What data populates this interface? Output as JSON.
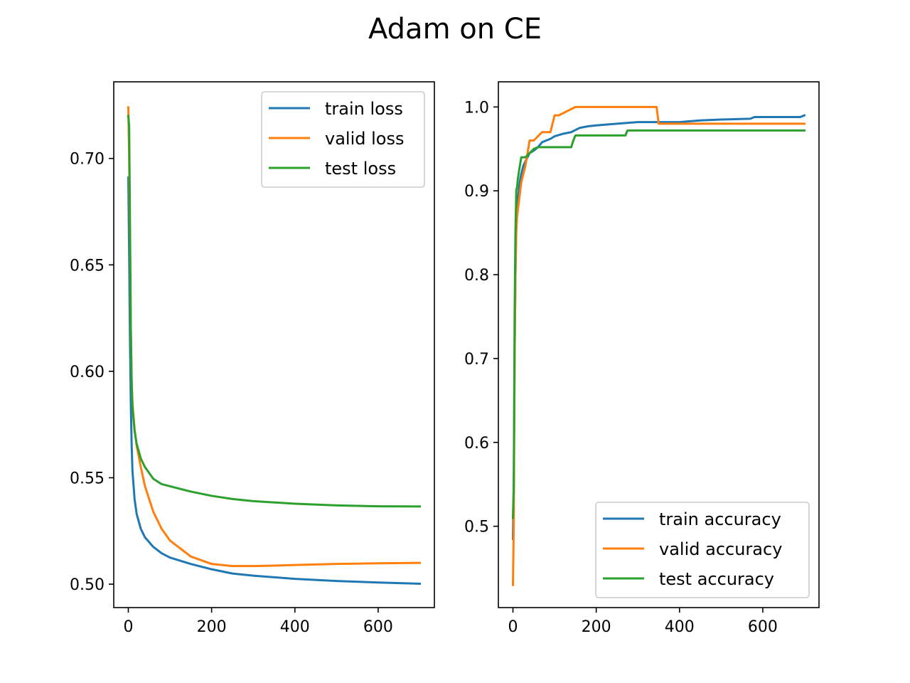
{
  "figure": {
    "title": "Adam on CE"
  },
  "colors": {
    "train": "#1f77b4",
    "valid": "#ff7f0e",
    "test": "#2ca02c"
  },
  "chart_data": [
    {
      "type": "line",
      "title": "",
      "xlabel": "",
      "ylabel": "",
      "xlim": [
        -35,
        735
      ],
      "ylim": [
        0.489,
        0.736
      ],
      "xticks": [
        0,
        200,
        400,
        600
      ],
      "xtick_labels": [
        "0",
        "200",
        "400",
        "600"
      ],
      "yticks": [
        0.5,
        0.55,
        0.6,
        0.65,
        0.7
      ],
      "ytick_labels": [
        "0.50",
        "0.55",
        "0.60",
        "0.65",
        "0.70"
      ],
      "legend_position": "upper-right",
      "series": [
        {
          "name": "train loss",
          "color": "#1f77b4",
          "x": [
            0,
            2,
            4,
            6,
            8,
            10,
            15,
            20,
            30,
            40,
            60,
            80,
            100,
            150,
            200,
            250,
            300,
            400,
            500,
            600,
            700
          ],
          "y": [
            0.691,
            0.655,
            0.615,
            0.585,
            0.565,
            0.553,
            0.54,
            0.533,
            0.526,
            0.522,
            0.5175,
            0.5145,
            0.5125,
            0.5095,
            0.507,
            0.505,
            0.504,
            0.5025,
            0.5015,
            0.5008,
            0.5002
          ]
        },
        {
          "name": "valid loss",
          "color": "#ff7f0e",
          "x": [
            0,
            2,
            4,
            6,
            8,
            10,
            15,
            20,
            30,
            40,
            60,
            80,
            100,
            150,
            200,
            250,
            300,
            350,
            400,
            500,
            600,
            700
          ],
          "y": [
            0.724,
            0.7,
            0.66,
            0.62,
            0.595,
            0.585,
            0.573,
            0.565,
            0.555,
            0.546,
            0.534,
            0.526,
            0.5205,
            0.513,
            0.5095,
            0.5085,
            0.5085,
            0.5087,
            0.509,
            0.5095,
            0.5098,
            0.51
          ]
        },
        {
          "name": "test loss",
          "color": "#2ca02c",
          "x": [
            0,
            2,
            4,
            6,
            8,
            10,
            15,
            20,
            30,
            40,
            60,
            80,
            100,
            150,
            200,
            250,
            300,
            400,
            500,
            600,
            700
          ],
          "y": [
            0.72,
            0.715,
            0.67,
            0.62,
            0.595,
            0.583,
            0.572,
            0.566,
            0.559,
            0.555,
            0.5495,
            0.547,
            0.546,
            0.5435,
            0.5415,
            0.54,
            0.539,
            0.5378,
            0.537,
            0.5366,
            0.5365
          ]
        }
      ]
    },
    {
      "type": "line",
      "title": "",
      "xlabel": "",
      "ylabel": "",
      "xlim": [
        -35,
        735
      ],
      "ylim": [
        0.403,
        1.03
      ],
      "xticks": [
        0,
        200,
        400,
        600
      ],
      "xtick_labels": [
        "0",
        "200",
        "400",
        "600"
      ],
      "yticks": [
        0.5,
        0.6,
        0.7,
        0.8,
        0.9,
        1.0
      ],
      "ytick_labels": [
        "0.5",
        "0.6",
        "0.7",
        "0.8",
        "0.9",
        "1.0"
      ],
      "legend_position": "lower-right",
      "series": [
        {
          "name": "train accuracy",
          "color": "#1f77b4",
          "x": [
            0,
            2,
            4,
            6,
            8,
            10,
            12,
            15,
            18,
            20,
            25,
            30,
            40,
            50,
            60,
            70,
            80,
            90,
            100,
            120,
            140,
            160,
            180,
            200,
            250,
            300,
            350,
            400,
            450,
            500,
            570,
            580,
            690,
            700
          ],
          "y": [
            0.485,
            0.55,
            0.7,
            0.8,
            0.86,
            0.88,
            0.89,
            0.905,
            0.915,
            0.92,
            0.93,
            0.935,
            0.945,
            0.948,
            0.952,
            0.958,
            0.96,
            0.962,
            0.965,
            0.968,
            0.97,
            0.975,
            0.977,
            0.978,
            0.98,
            0.982,
            0.982,
            0.982,
            0.984,
            0.985,
            0.986,
            0.988,
            0.988,
            0.99
          ]
        },
        {
          "name": "valid accuracy",
          "color": "#ff7f0e",
          "x": [
            0,
            2,
            4,
            6,
            8,
            10,
            15,
            20,
            25,
            30,
            40,
            50,
            70,
            80,
            90,
            100,
            110,
            150,
            200,
            250,
            300,
            345,
            350,
            400,
            500,
            600,
            700
          ],
          "y": [
            0.43,
            0.5,
            0.7,
            0.8,
            0.85,
            0.87,
            0.89,
            0.91,
            0.92,
            0.93,
            0.96,
            0.96,
            0.97,
            0.97,
            0.97,
            0.99,
            0.99,
            1.0,
            1.0,
            1.0,
            1.0,
            1.0,
            0.98,
            0.98,
            0.98,
            0.98,
            0.98
          ]
        },
        {
          "name": "test accuracy",
          "color": "#2ca02c",
          "x": [
            0,
            2,
            4,
            6,
            8,
            10,
            12,
            15,
            20,
            30,
            40,
            50,
            60,
            100,
            140,
            145,
            150,
            200,
            270,
            275,
            300,
            400,
            500,
            600,
            700
          ],
          "y": [
            0.51,
            0.55,
            0.75,
            0.85,
            0.9,
            0.905,
            0.915,
            0.925,
            0.94,
            0.94,
            0.945,
            0.95,
            0.952,
            0.952,
            0.952,
            0.96,
            0.966,
            0.966,
            0.966,
            0.972,
            0.972,
            0.972,
            0.972,
            0.972,
            0.972
          ]
        }
      ]
    }
  ]
}
